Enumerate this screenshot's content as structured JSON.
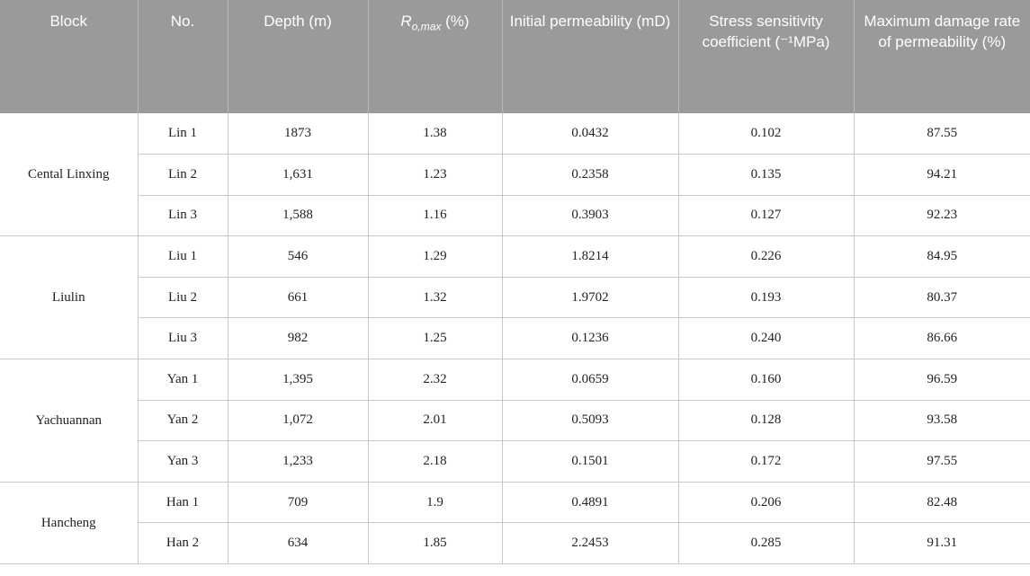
{
  "headers": {
    "block": "Block",
    "no": "No.",
    "depth": "Depth (m)",
    "ro_symbol": "R",
    "ro_sub": "o,max",
    "ro_unit": " (%)",
    "init_perm": "Initial permeability (mD)",
    "stress": "Stress sensitivity coefficient (⁻¹MPa)",
    "damage": "Maximum damage rate of permeability (%)"
  },
  "groups": [
    {
      "block": "Cental Linxing",
      "rows": [
        {
          "no": "Lin 1",
          "depth": "1873",
          "ro": "1.38",
          "perm": "0.0432",
          "stress": "0.102",
          "damage": "87.55"
        },
        {
          "no": "Lin 2",
          "depth": "1,631",
          "ro": "1.23",
          "perm": "0.2358",
          "stress": "0.135",
          "damage": "94.21"
        },
        {
          "no": "Lin 3",
          "depth": "1,588",
          "ro": "1.16",
          "perm": "0.3903",
          "stress": "0.127",
          "damage": "92.23"
        }
      ]
    },
    {
      "block": "Liulin",
      "rows": [
        {
          "no": "Liu 1",
          "depth": "546",
          "ro": "1.29",
          "perm": "1.8214",
          "stress": "0.226",
          "damage": "84.95"
        },
        {
          "no": "Liu 2",
          "depth": "661",
          "ro": "1.32",
          "perm": "1.9702",
          "stress": "0.193",
          "damage": "80.37"
        },
        {
          "no": "Liu 3",
          "depth": "982",
          "ro": "1.25",
          "perm": "0.1236",
          "stress": "0.240",
          "damage": "86.66"
        }
      ]
    },
    {
      "block": "Yachuannan",
      "rows": [
        {
          "no": "Yan 1",
          "depth": "1,395",
          "ro": "2.32",
          "perm": "0.0659",
          "stress": "0.160",
          "damage": "96.59"
        },
        {
          "no": "Yan 2",
          "depth": "1,072",
          "ro": "2.01",
          "perm": "0.5093",
          "stress": "0.128",
          "damage": "93.58"
        },
        {
          "no": "Yan 3",
          "depth": "1,233",
          "ro": "2.18",
          "perm": "0.1501",
          "stress": "0.172",
          "damage": "97.55"
        }
      ]
    },
    {
      "block": "Hancheng",
      "rows": [
        {
          "no": "Han 1",
          "depth": "709",
          "ro": "1.9",
          "perm": "0.4891",
          "stress": "0.206",
          "damage": "82.48"
        },
        {
          "no": "Han 2",
          "depth": "634",
          "ro": "1.85",
          "perm": "2.2453",
          "stress": "0.285",
          "damage": "91.31"
        }
      ]
    }
  ]
}
